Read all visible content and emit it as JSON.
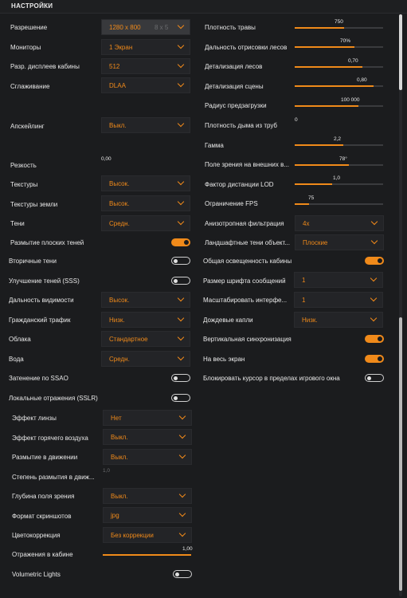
{
  "header": {
    "title": "НАСТРОЙКИ"
  },
  "left": {
    "resolution": {
      "label": "Разрешение",
      "value": "1280 x 800",
      "aspect": "8 x 5"
    },
    "monitors": {
      "label": "Мониторы",
      "value": "1 Экран"
    },
    "cabin_res": {
      "label": "Разр. дисплеев кабины",
      "value": "512"
    },
    "smoothing": {
      "label": "Сглаживание",
      "value": "DLAA"
    },
    "upscaling": {
      "label": "Апскейлинг",
      "value": "Выкл."
    },
    "sharpness": {
      "label": "Резкость",
      "value": "0,00"
    },
    "textures": {
      "label": "Текстуры",
      "value": "Высок."
    },
    "ground_textures": {
      "label": "Текстуры земли",
      "value": "Высок."
    },
    "shadows": {
      "label": "Тени",
      "value": "Средн."
    },
    "blur_flat_shadows": {
      "label": "Размытие плоских теней",
      "on": true
    },
    "secondary_shadows": {
      "label": "Вторичные тени",
      "on": false
    },
    "sss": {
      "label": "Улучшение теней (SSS)",
      "on": false
    },
    "view_distance": {
      "label": "Дальность видимости",
      "value": "Высок."
    },
    "civil_traffic": {
      "label": "Гражданский трафик",
      "value": "Низк."
    },
    "clouds": {
      "label": "Облака",
      "value": "Стандартное"
    },
    "water": {
      "label": "Вода",
      "value": "Средн."
    },
    "ssao": {
      "label": "Затенение по SSAO",
      "on": false
    },
    "sslr": {
      "label": "Локальные отражения (SSLR)",
      "on": false
    },
    "lens": {
      "label": "Эффект линзы",
      "value": "Нет"
    },
    "hot_air": {
      "label": "Эффект горячего воздуха",
      "value": "Выкл."
    },
    "motion_blur": {
      "label": "Размытие в движении",
      "value": "Выкл."
    },
    "motion_blur_amount": {
      "label": "Степень размытия в движ...",
      "value": "1,0"
    },
    "dof": {
      "label": "Глубина поля зрения",
      "value": "Выкл."
    },
    "screenshot_format": {
      "label": "Формат скриншотов",
      "value": "jpg"
    },
    "color_correction": {
      "label": "Цветокоррекция",
      "value": "Без коррекции"
    },
    "cabin_reflections": {
      "label": "Отражения в кабине",
      "value": "1,00",
      "level": 1.0
    },
    "volumetric": {
      "label": "Volumetric Lights",
      "on": false
    }
  },
  "right": {
    "grass_density": {
      "label": "Плотность травы",
      "value": "750",
      "level": 0.56
    },
    "forest_distance": {
      "label": "Дальность отрисовки лесов",
      "value": "70%",
      "level": 0.68
    },
    "forest_detail": {
      "label": "Детализация лесов",
      "value": "0,70",
      "level": 0.77
    },
    "scene_detail": {
      "label": "Детализация сцены",
      "value": "0,80",
      "level": 0.89
    },
    "preload_radius": {
      "label": "Радиус предзагрузки",
      "value": "100 000",
      "level": 0.72
    },
    "smoke_density": {
      "label": "Плотность дыма из труб",
      "value": "0",
      "level": 0.0
    },
    "gamma": {
      "label": "Гамма",
      "value": "2,2",
      "level": 0.55
    },
    "fov_external": {
      "label": "Поле зрения на внешних в...",
      "value": "78°",
      "level": 0.61
    },
    "lod_factor": {
      "label": "Фактор дистанции LOD",
      "value": "1,0",
      "level": 0.42
    },
    "fps_limit": {
      "label": "Ограничение FPS",
      "value": "75",
      "level": 0.16
    },
    "anisotropic": {
      "label": "Анизотропная фильтрация",
      "value": "4x"
    },
    "landscape_shadows": {
      "label": "Ландшафтные тени объект...",
      "value": "Плоские"
    },
    "cabin_ambient": {
      "label": "Общая освещенность кабины",
      "on": true
    },
    "font_size": {
      "label": "Размер шрифта сообщений",
      "value": "1"
    },
    "ui_scale": {
      "label": "Масштабировать интерфе...",
      "value": "1"
    },
    "rain_drops": {
      "label": "Дождевые капли",
      "value": "Низк."
    },
    "vsync": {
      "label": "Вертикальная синхронизация",
      "on": true
    },
    "fullscreen": {
      "label": "На весь экран",
      "on": true
    },
    "lock_cursor": {
      "label": "Блокировать курсор в пределах игрового окна",
      "on": false
    }
  },
  "colors": {
    "accent": "#f08a1a",
    "background": "#1b1c1e",
    "panel": "#232427"
  },
  "scroll": {
    "thumb_top": 0.0,
    "thumb_size": 0.13,
    "thumb2_top": 0.52,
    "thumb2_size": 0.47
  }
}
